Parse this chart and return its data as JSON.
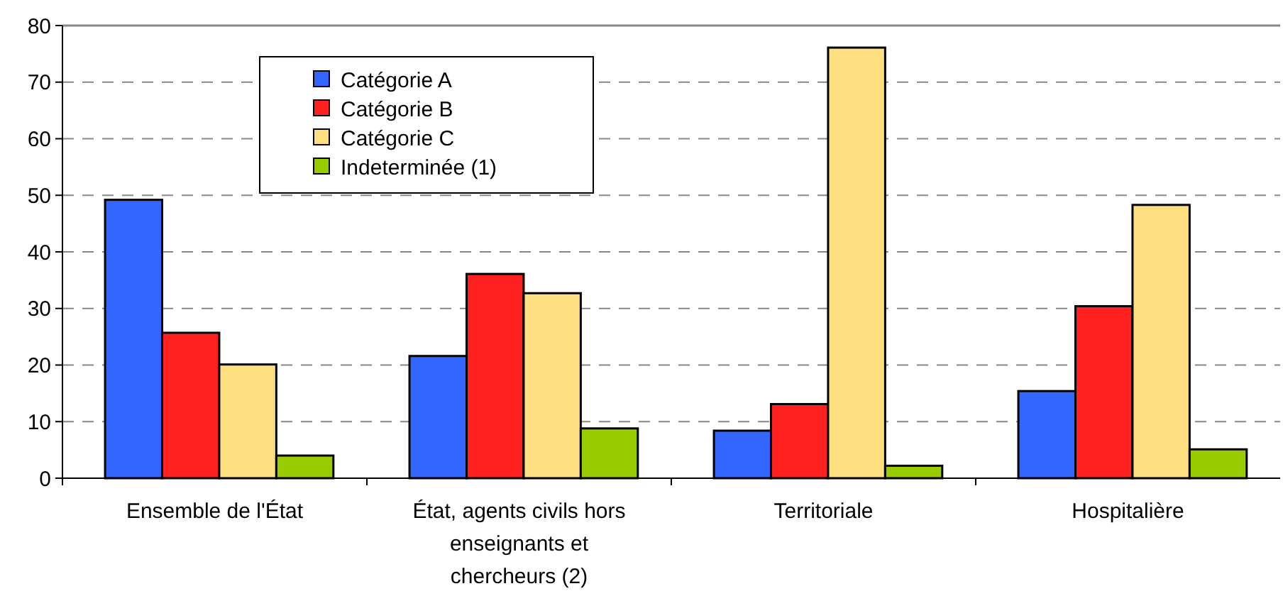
{
  "chart_data": {
    "type": "bar",
    "categories": [
      "Ensemble de l'État",
      "État, agents civils hors enseignants et chercheurs (2)",
      "Territoriale",
      "Hospitalière"
    ],
    "series": [
      {
        "name": "Catégorie A",
        "color": "#3366ff",
        "values": [
          49.2,
          21.6,
          8.4,
          15.4
        ]
      },
      {
        "name": "Catégorie B",
        "color": "#ff2020",
        "values": [
          25.7,
          36.1,
          13.1,
          30.4
        ]
      },
      {
        "name": "Catégorie C",
        "color": "#ffe080",
        "values": [
          20.1,
          32.7,
          76.1,
          48.3
        ]
      },
      {
        "name": "Indeterminée (1)",
        "color": "#99cc00",
        "values": [
          4.0,
          8.8,
          2.2,
          5.1
        ]
      }
    ],
    "ylim": [
      0,
      80
    ],
    "yticks": [
      0,
      10,
      20,
      30,
      40,
      50,
      60,
      70,
      80
    ],
    "grid": "y",
    "legend": "top left"
  }
}
